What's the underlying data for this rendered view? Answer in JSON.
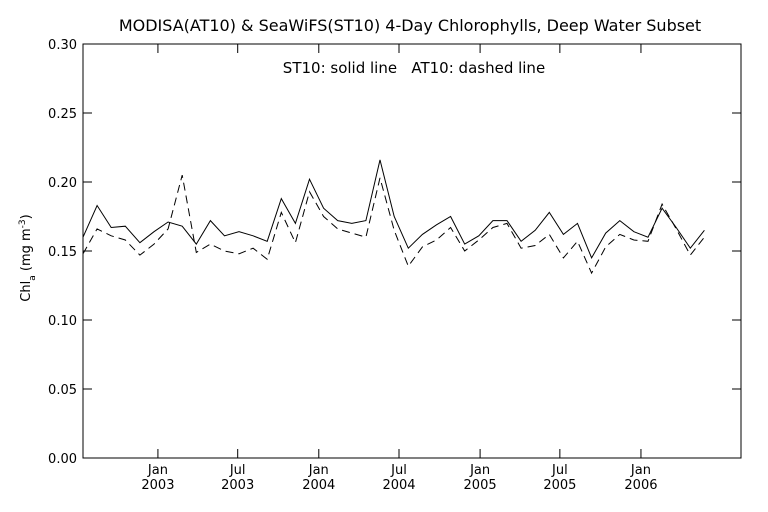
{
  "chart_data": {
    "type": "line",
    "title": "MODISA(AT10) & SeaWiFS(ST10) 4-Day Chlorophylls, Deep Water Subset",
    "annotation": "ST10: solid line   AT10: dashed line",
    "ylabel": {
      "main": "Chl",
      "sub": "a",
      "unit_open": " (mg m",
      "unit_sup": "-3",
      "unit_close": ")"
    },
    "xlabel": "",
    "ylim": [
      0.0,
      0.3
    ],
    "xlim": [
      "2002-07-15",
      "2006-08-16"
    ],
    "y_ticks": [
      "0.00",
      "0.05",
      "0.10",
      "0.15",
      "0.20",
      "0.25",
      "0.30"
    ],
    "x_ticks": [
      {
        "date": "2003-01-01",
        "month": "Jan",
        "year": "2003"
      },
      {
        "date": "2003-07-01",
        "month": "Jul",
        "year": "2003"
      },
      {
        "date": "2004-01-01",
        "month": "Jan",
        "year": "2004"
      },
      {
        "date": "2004-07-01",
        "month": "Jul",
        "year": "2004"
      },
      {
        "date": "2005-01-01",
        "month": "Jan",
        "year": "2005"
      },
      {
        "date": "2005-07-01",
        "month": "Jul",
        "year": "2005"
      },
      {
        "date": "2006-01-01",
        "month": "Jan",
        "year": "2006"
      }
    ],
    "grid": false,
    "legend": "none",
    "series": [
      {
        "name": "ST10",
        "style": "solid",
        "color": "#000000",
        "points": [
          [
            "2002-07-15",
            0.16
          ],
          [
            "2002-08-16",
            0.183
          ],
          [
            "2002-09-17",
            0.167
          ],
          [
            "2002-10-19",
            0.168
          ],
          [
            "2002-11-21",
            0.156
          ],
          [
            "2002-12-23",
            0.164
          ],
          [
            "2003-01-24",
            0.171
          ],
          [
            "2003-02-25",
            0.168
          ],
          [
            "2003-03-29",
            0.155
          ],
          [
            "2003-04-30",
            0.172
          ],
          [
            "2003-06-01",
            0.161
          ],
          [
            "2003-07-04",
            0.164
          ],
          [
            "2003-08-05",
            0.161
          ],
          [
            "2003-09-06",
            0.157
          ],
          [
            "2003-10-08",
            0.188
          ],
          [
            "2003-11-09",
            0.17
          ],
          [
            "2003-12-11",
            0.202
          ],
          [
            "2004-01-12",
            0.181
          ],
          [
            "2004-02-13",
            0.172
          ],
          [
            "2004-03-16",
            0.17
          ],
          [
            "2004-04-17",
            0.172
          ],
          [
            "2004-05-19",
            0.216
          ],
          [
            "2004-06-20",
            0.175
          ],
          [
            "2004-07-22",
            0.152
          ],
          [
            "2004-08-23",
            0.162
          ],
          [
            "2004-09-24",
            0.169
          ],
          [
            "2004-10-26",
            0.175
          ],
          [
            "2004-11-27",
            0.155
          ],
          [
            "2004-12-29",
            0.161
          ],
          [
            "2005-01-30",
            0.172
          ],
          [
            "2005-03-03",
            0.172
          ],
          [
            "2005-04-04",
            0.157
          ],
          [
            "2005-05-06",
            0.165
          ],
          [
            "2005-06-07",
            0.178
          ],
          [
            "2005-07-09",
            0.162
          ],
          [
            "2005-08-10",
            0.17
          ],
          [
            "2005-09-11",
            0.145
          ],
          [
            "2005-10-13",
            0.163
          ],
          [
            "2005-11-14",
            0.172
          ],
          [
            "2005-12-16",
            0.164
          ],
          [
            "2006-01-17",
            0.16
          ],
          [
            "2006-02-18",
            0.181
          ],
          [
            "2006-03-22",
            0.167
          ],
          [
            "2006-04-23",
            0.152
          ],
          [
            "2006-05-25",
            0.165
          ]
        ]
      },
      {
        "name": "AT10",
        "style": "dashed",
        "color": "#000000",
        "points": [
          [
            "2002-07-15",
            0.148
          ],
          [
            "2002-08-16",
            0.166
          ],
          [
            "2002-09-17",
            0.161
          ],
          [
            "2002-10-19",
            0.158
          ],
          [
            "2002-11-21",
            0.147
          ],
          [
            "2002-12-23",
            0.155
          ],
          [
            "2003-01-24",
            0.166
          ],
          [
            "2003-02-25",
            0.205
          ],
          [
            "2003-03-29",
            0.149
          ],
          [
            "2003-04-30",
            0.155
          ],
          [
            "2003-06-01",
            0.15
          ],
          [
            "2003-07-04",
            0.148
          ],
          [
            "2003-08-05",
            0.152
          ],
          [
            "2003-09-06",
            0.144
          ],
          [
            "2003-10-08",
            0.178
          ],
          [
            "2003-11-09",
            0.156
          ],
          [
            "2003-12-11",
            0.193
          ],
          [
            "2004-01-12",
            0.175
          ],
          [
            "2004-02-13",
            0.166
          ],
          [
            "2004-03-16",
            0.163
          ],
          [
            "2004-04-17",
            0.16
          ],
          [
            "2004-05-19",
            0.203
          ],
          [
            "2004-06-20",
            0.165
          ],
          [
            "2004-07-22",
            0.139
          ],
          [
            "2004-08-23",
            0.153
          ],
          [
            "2004-09-24",
            0.158
          ],
          [
            "2004-10-26",
            0.167
          ],
          [
            "2004-11-27",
            0.15
          ],
          [
            "2004-12-29",
            0.158
          ],
          [
            "2005-01-30",
            0.167
          ],
          [
            "2005-03-03",
            0.17
          ],
          [
            "2005-04-04",
            0.152
          ],
          [
            "2005-05-06",
            0.154
          ],
          [
            "2005-06-07",
            0.162
          ],
          [
            "2005-07-09",
            0.145
          ],
          [
            "2005-08-10",
            0.157
          ],
          [
            "2005-09-11",
            0.134
          ],
          [
            "2005-10-13",
            0.153
          ],
          [
            "2005-11-14",
            0.162
          ],
          [
            "2005-12-16",
            0.158
          ],
          [
            "2006-01-17",
            0.157
          ],
          [
            "2006-02-18",
            0.184
          ],
          [
            "2006-03-22",
            0.166
          ],
          [
            "2006-04-23",
            0.147
          ],
          [
            "2006-05-25",
            0.16
          ]
        ]
      }
    ]
  }
}
